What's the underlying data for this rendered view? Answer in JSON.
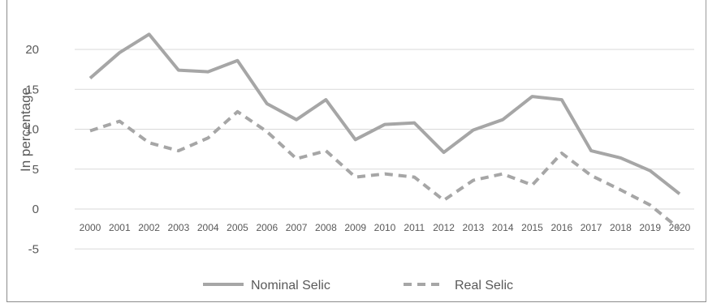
{
  "chart_data": {
    "type": "line",
    "xlabel": "",
    "ylabel": "In  percentage",
    "categories": [
      "2000",
      "2001",
      "2002",
      "2003",
      "2004",
      "2005",
      "2006",
      "2007",
      "2008",
      "2009",
      "2010",
      "2011",
      "2012",
      "2013",
      "2014",
      "2015",
      "2016",
      "2017",
      "2018",
      "2019",
      "2020"
    ],
    "yticks": [
      "-5",
      "0",
      "5",
      "10",
      "15",
      "20"
    ],
    "ylim": [
      -5,
      25
    ],
    "grid": true,
    "legend_position": "bottom",
    "series": [
      {
        "name": "Nominal Selic",
        "style": "solid",
        "color": "#a6a6a6",
        "values": [
          16.4,
          19.6,
          21.9,
          17.4,
          17.2,
          18.6,
          13.2,
          11.2,
          13.7,
          8.7,
          10.6,
          10.8,
          7.1,
          9.9,
          11.2,
          14.1,
          13.7,
          7.3,
          6.4,
          4.8,
          1.9
        ]
      },
      {
        "name": "Real Selic",
        "style": "dashed",
        "color": "#a6a6a6",
        "values": [
          9.8,
          11.0,
          8.3,
          7.3,
          8.9,
          12.2,
          9.7,
          6.3,
          7.3,
          4.0,
          4.4,
          4.0,
          1.1,
          3.6,
          4.4,
          3.0,
          7.0,
          4.2,
          2.4,
          0.5,
          -2.5
        ]
      }
    ]
  }
}
